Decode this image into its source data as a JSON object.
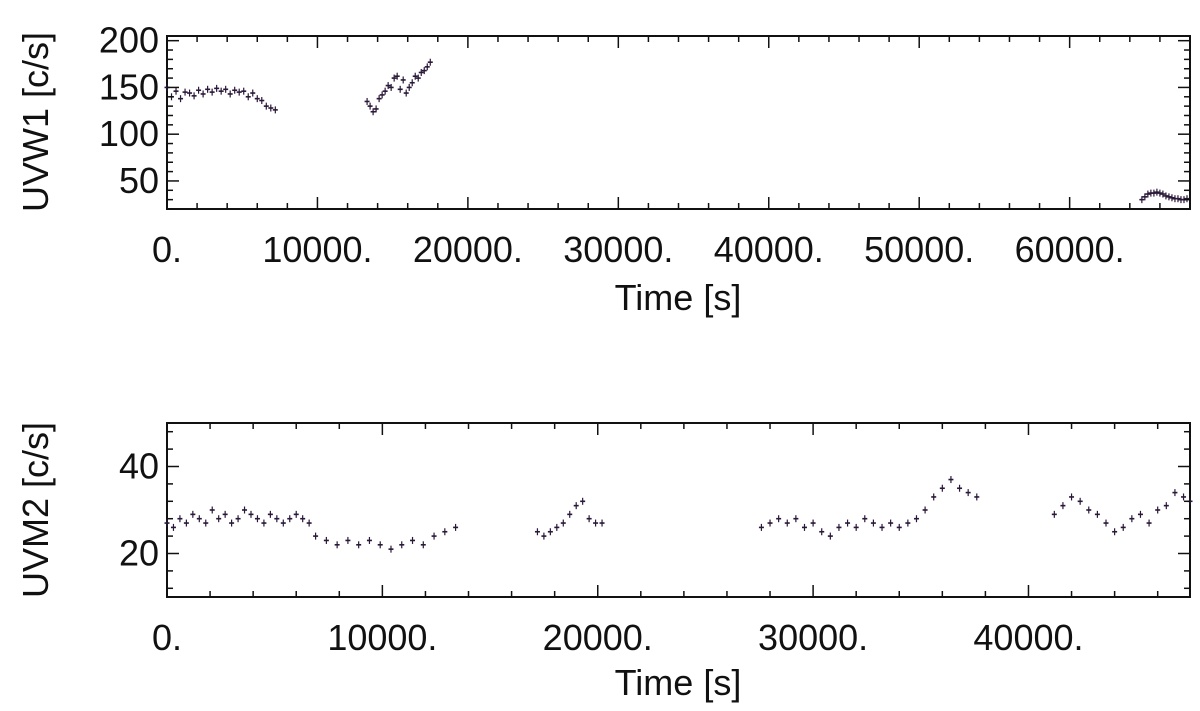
{
  "chart_data": [
    {
      "type": "scatter",
      "id": "uvw1",
      "xlabel": "Time [s]",
      "ylabel": "UVW1 [c/s]",
      "xlim": [
        0,
        68000
      ],
      "ylim": [
        20,
        205
      ],
      "x_ticks": [
        0,
        10000,
        20000,
        30000,
        40000,
        50000,
        60000
      ],
      "x_tick_labels": [
        "0.",
        "10000.",
        "20000.",
        "30000.",
        "40000.",
        "50000.",
        "60000."
      ],
      "y_ticks": [
        50,
        100,
        150,
        200
      ],
      "y_tick_labels": [
        "50",
        "100",
        "150",
        "200"
      ],
      "marker_color": "#2a1838",
      "grid": false,
      "series": [
        {
          "segments": [
            {
              "x": [
                0,
                300,
                600,
                900,
                1200,
                1500,
                1800,
                2100,
                2400,
                2700,
                3000,
                3300,
                3600,
                3900,
                4200,
                4500,
                4800,
                5100,
                5400,
                5700,
                6000,
                6300,
                6600,
                6900,
                7200
              ],
              "y": [
                150,
                140,
                146,
                138,
                145,
                144,
                141,
                147,
                143,
                148,
                145,
                149,
                146,
                148,
                143,
                147,
                145,
                146,
                140,
                144,
                138,
                136,
                130,
                128,
                126
              ]
            },
            {
              "x": [
                13300,
                13500,
                13700,
                13900,
                14100,
                14300,
                14500,
                14700,
                14900,
                15100,
                15300,
                15500,
                15700,
                15900,
                16100,
                16300,
                16500,
                16700,
                16900,
                17100,
                17300,
                17500
              ],
              "y": [
                135,
                130,
                124,
                127,
                138,
                142,
                146,
                152,
                150,
                160,
                162,
                148,
                158,
                144,
                150,
                155,
                162,
                160,
                166,
                168,
                172,
                177
              ]
            },
            {
              "x": [
                64800,
                65000,
                65200,
                65400,
                65600,
                65800,
                66000,
                66200,
                66400,
                66600,
                66800,
                67000,
                67200,
                67400,
                67600,
                67800
              ],
              "y": [
                30,
                33,
                36,
                37,
                37,
                38,
                37,
                36,
                34,
                33,
                32,
                31,
                31,
                30,
                30,
                31
              ]
            }
          ]
        }
      ]
    },
    {
      "type": "scatter",
      "id": "uvm2",
      "xlabel": "Time [s]",
      "ylabel": "UVM2 [c/s]",
      "xlim": [
        0,
        47500
      ],
      "ylim": [
        10,
        50
      ],
      "x_ticks": [
        0,
        10000,
        20000,
        30000,
        40000
      ],
      "x_tick_labels": [
        "0.",
        "10000.",
        "20000.",
        "30000.",
        "40000."
      ],
      "y_ticks": [
        20,
        40
      ],
      "y_tick_labels": [
        "20",
        "40"
      ],
      "marker_color": "#2a1838",
      "grid": false,
      "series": [
        {
          "segments": [
            {
              "x": [
                0,
                300,
                600,
                900,
                1200,
                1500,
                1800,
                2100,
                2400,
                2700,
                3000,
                3300,
                3600,
                3900,
                4200,
                4500,
                4800,
                5100,
                5400,
                5700,
                6000,
                6300,
                6600
              ],
              "y": [
                27,
                26,
                28,
                27,
                29,
                28,
                27,
                30,
                28,
                29,
                27,
                28,
                30,
                29,
                28,
                27,
                29,
                28,
                27,
                28,
                29,
                28,
                27
              ]
            },
            {
              "x": [
                6900,
                7400,
                7900,
                8400,
                8900,
                9400,
                9900,
                10400,
                10900,
                11400,
                11900,
                12400,
                12900,
                13400
              ],
              "y": [
                24,
                23,
                22,
                23,
                22,
                23,
                22,
                21,
                22,
                23,
                22,
                24,
                25,
                26
              ]
            },
            {
              "x": [
                17200,
                17500,
                17800,
                18100,
                18400,
                18700,
                19000,
                19300,
                19600,
                19900,
                20200
              ],
              "y": [
                25,
                24,
                25,
                26,
                27,
                29,
                31,
                32,
                28,
                27,
                27
              ]
            },
            {
              "x": [
                27600,
                28000,
                28400,
                28800,
                29200,
                29600,
                30000,
                30400,
                30800,
                31200,
                31600,
                32000,
                32400,
                32800,
                33200,
                33600,
                34000,
                34400,
                34800,
                35200,
                35600,
                36000,
                36400,
                36800,
                37200,
                37600
              ],
              "y": [
                26,
                27,
                28,
                27,
                28,
                26,
                27,
                25,
                24,
                26,
                27,
                26,
                28,
                27,
                26,
                27,
                26,
                27,
                28,
                30,
                33,
                35,
                37,
                35,
                34,
                33
              ]
            },
            {
              "x": [
                41200,
                41600,
                42000,
                42400,
                42800,
                43200,
                43600,
                44000,
                44400,
                44800,
                45200,
                45600,
                46000,
                46400,
                46800,
                47200,
                47500
              ],
              "y": [
                29,
                31,
                33,
                32,
                30,
                29,
                27,
                25,
                26,
                28,
                29,
                27,
                30,
                31,
                34,
                33,
                32
              ]
            }
          ]
        }
      ]
    }
  ]
}
